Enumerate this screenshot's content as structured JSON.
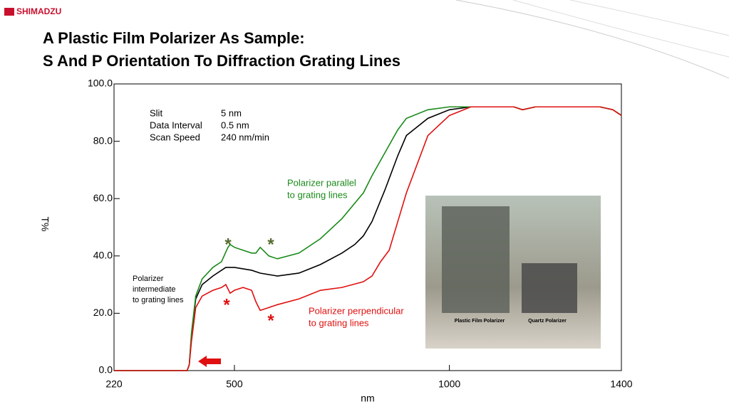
{
  "header": {
    "logo": "SHIMADZU",
    "title": [
      "A Plastic Film Polarizer As Sample:",
      "S And P Orientation To Diffraction Grating Lines"
    ]
  },
  "chart_data": {
    "type": "line",
    "xlabel": "nm",
    "ylabel": "T%",
    "xlim": [
      220,
      1400
    ],
    "xticks": [
      220,
      500,
      1000,
      1400
    ],
    "ylim": [
      0,
      100
    ],
    "yticks": [
      {
        "value": 0,
        "label": "0.0"
      },
      {
        "value": 20,
        "label": "20.0"
      },
      {
        "value": 40,
        "label": "40.0"
      },
      {
        "value": 60,
        "label": "60.0"
      },
      {
        "value": 80,
        "label": "80.0"
      },
      {
        "value": 100,
        "label": "100.0"
      }
    ],
    "series": [
      {
        "name": "intermediate",
        "color": "#000000",
        "x": [
          220,
          390,
          395,
          400,
          410,
          425,
          450,
          480,
          500,
          540,
          560,
          600,
          650,
          700,
          750,
          780,
          800,
          820,
          850,
          880,
          900,
          950,
          1000,
          1050,
          1100,
          1150,
          1170,
          1200,
          1250,
          1300,
          1350,
          1380,
          1400
        ],
        "values": [
          0,
          0,
          2,
          12,
          25,
          30,
          33,
          36,
          36,
          35,
          34,
          33,
          34,
          37,
          41,
          44,
          47,
          52,
          63,
          75,
          82,
          88,
          91,
          92,
          92,
          92,
          91,
          92,
          92,
          92,
          92,
          91,
          89
        ]
      },
      {
        "name": "parallel",
        "color": "#1a8a1a",
        "x": [
          220,
          390,
          395,
          400,
          410,
          425,
          450,
          470,
          485,
          490,
          500,
          520,
          540,
          550,
          560,
          580,
          600,
          650,
          700,
          750,
          800,
          820,
          850,
          880,
          900,
          950,
          1000,
          1050,
          1100,
          1150,
          1170,
          1200,
          1250,
          1300,
          1350,
          1380,
          1400
        ],
        "values": [
          0,
          0,
          2,
          13,
          26,
          32,
          36,
          38,
          43,
          44,
          43,
          42,
          41,
          41,
          43,
          40,
          39,
          41,
          46,
          53,
          62,
          68,
          76,
          84,
          88,
          91,
          92,
          92,
          92,
          92,
          91,
          92,
          92,
          92,
          92,
          91,
          89
        ]
      },
      {
        "name": "perpendicular",
        "color": "#e01010",
        "x": [
          220,
          390,
          395,
          400,
          410,
          425,
          450,
          470,
          480,
          490,
          500,
          520,
          540,
          550,
          560,
          580,
          600,
          650,
          700,
          750,
          800,
          820,
          840,
          860,
          880,
          900,
          950,
          1000,
          1050,
          1100,
          1150,
          1170,
          1200,
          1250,
          1300,
          1350,
          1380,
          1400
        ],
        "values": [
          0,
          0,
          2,
          10,
          22,
          26,
          28,
          29,
          30,
          27,
          28,
          29,
          28,
          24,
          21,
          22,
          23,
          25,
          28,
          29,
          31,
          33,
          38,
          42,
          52,
          62,
          82,
          89,
          92,
          92,
          92,
          91,
          92,
          92,
          92,
          92,
          91,
          89
        ]
      }
    ],
    "settings": [
      [
        "Slit",
        "5 nm"
      ],
      [
        "Data Interval",
        "0.5 nm"
      ],
      [
        "Scan Speed",
        "240 nm/min"
      ]
    ],
    "annotations": [
      {
        "lines": [
          "Polarizer parallel",
          "to grating lines"
        ],
        "color": "#1a8a1a"
      },
      {
        "lines": [
          "Polarizer perpendicular",
          "to grating lines"
        ],
        "color": "#e01010"
      },
      {
        "lines": [
          "Polarizer",
          "intermediate",
          "to grating lines"
        ],
        "color": "#000000"
      }
    ],
    "markers": [
      {
        "text": "*",
        "color": "#556b2f"
      },
      {
        "text": "*",
        "color": "#556b2f"
      },
      {
        "text": "*",
        "color": "#e01010"
      },
      {
        "text": "*",
        "color": "#e01010"
      }
    ]
  },
  "photo": {
    "labels": [
      "Plastic Film Polarizer",
      "Quartz Polarizer"
    ]
  }
}
